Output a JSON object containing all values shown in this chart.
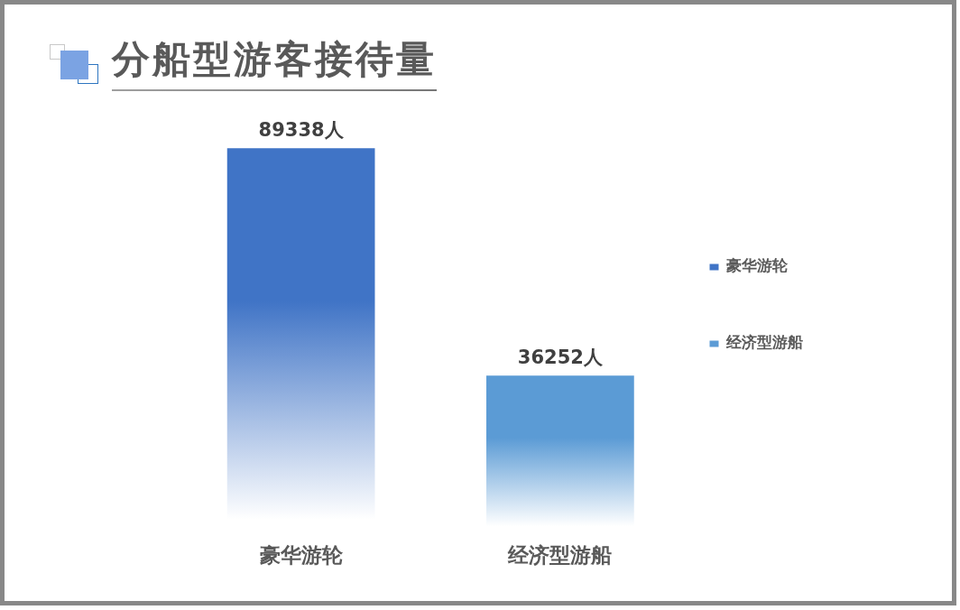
{
  "chart_data": {
    "type": "bar",
    "title": "分船型游客接待量",
    "categories": [
      "豪华游轮",
      "经济型游船"
    ],
    "series": [
      {
        "name": "豪华游轮",
        "color": "#4074c6",
        "values": [
          89338,
          null
        ],
        "value_labels": [
          "89338人",
          null
        ]
      },
      {
        "name": "经济型游船",
        "color": "#5b9bd5",
        "values": [
          null,
          36252
        ],
        "value_labels": [
          null,
          "36252人"
        ]
      }
    ],
    "legend": "right",
    "grid": false,
    "tick_labels": "x"
  }
}
